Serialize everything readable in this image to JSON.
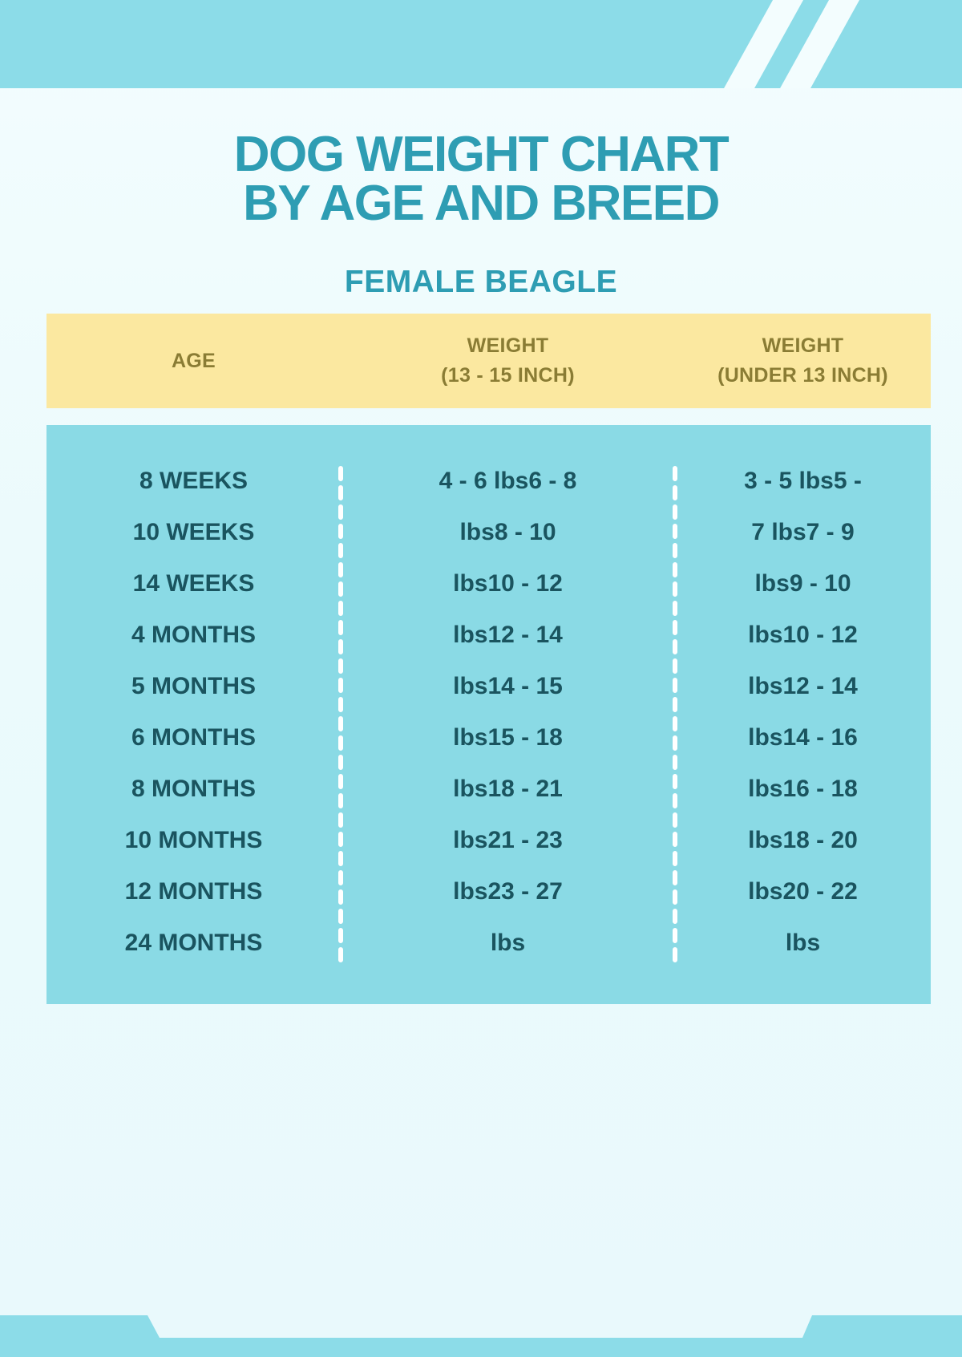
{
  "header": {
    "title_line1": "DOG WEIGHT CHART",
    "title_line2": "BY AGE AND BREED",
    "subtitle": "FEMALE BEAGLE"
  },
  "chart_data": {
    "type": "table",
    "title": "DOG WEIGHT CHART BY AGE AND BREED",
    "subtitle": "FEMALE BEAGLE",
    "columns": [
      "AGE",
      "WEIGHT (13 - 15 INCH)",
      "WEIGHT (UNDER 13 INCH)"
    ],
    "column_header_lines": [
      [
        "AGE"
      ],
      [
        "WEIGHT",
        "(13 - 15 INCH)"
      ],
      [
        "WEIGHT",
        "(UNDER 13 INCH)"
      ]
    ],
    "rows": [
      [
        "8 WEEKS",
        "4 - 6 lbs6 - 8",
        "3 - 5 lbs5 -"
      ],
      [
        "10 WEEKS",
        "lbs8 - 10",
        "7 lbs7 - 9"
      ],
      [
        "14 WEEKS",
        "lbs10 - 12",
        "lbs9 - 10"
      ],
      [
        "4 MONTHS",
        "lbs12 - 14",
        "lbs10 - 12"
      ],
      [
        "5 MONTHS",
        "lbs14 - 15",
        "lbs12 - 14"
      ],
      [
        "6 MONTHS",
        "lbs15 - 18",
        "lbs14 - 16"
      ],
      [
        "8 MONTHS",
        "lbs18 - 21",
        "lbs16 - 18"
      ],
      [
        "10 MONTHS",
        "lbs21 - 23",
        "lbs18 - 20"
      ],
      [
        "12 MONTHS",
        "lbs23 - 27",
        "lbs20 - 22"
      ],
      [
        "24 MONTHS",
        "lbs",
        "lbs"
      ]
    ],
    "layout_hints": {
      "column_separators": "white dashed vertical lines",
      "grid": false,
      "legend": "none"
    }
  },
  "colors": {
    "banner_teal": "#8CDCE8",
    "table_body_teal": "#8ADAE5",
    "header_yellow": "#FBE8A0",
    "header_text_olive": "#8A7C34",
    "title_teal": "#2E9DB3",
    "cell_text_dark_teal": "#1A545F",
    "background": "#EBFAFC",
    "stripe_white": "#FFFFFF"
  }
}
